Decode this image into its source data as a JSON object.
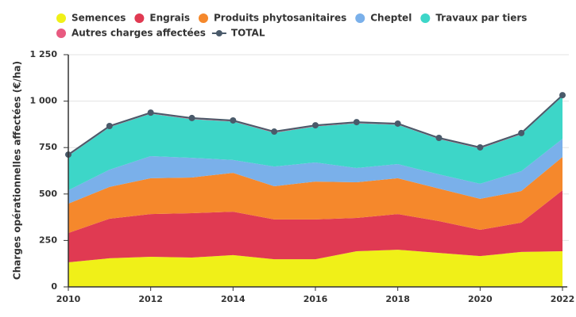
{
  "chart_data": {
    "type": "stacked-area",
    "y_label": "Charges opérationnelles affectées (€/ha)",
    "x": [
      2010,
      2011,
      2012,
      2013,
      2014,
      2015,
      2016,
      2017,
      2018,
      2019,
      2020,
      2021,
      2022
    ],
    "xlim": [
      2010,
      2022
    ],
    "xticks": [
      2010,
      2012,
      2014,
      2016,
      2018,
      2020,
      2022
    ],
    "ylim": [
      0,
      1250
    ],
    "yticks": [
      0,
      250,
      500,
      750,
      {
        "value": 1000,
        "label": "1 000"
      },
      {
        "value": 1250,
        "label": "1 250"
      }
    ],
    "grid": true,
    "series": [
      {
        "name": "Semences",
        "color": "#f0f018",
        "values": [
          132,
          154,
          162,
          158,
          171,
          149,
          149,
          192,
          200,
          183,
          166,
          188,
          192
        ]
      },
      {
        "name": "Engrais",
        "color": "#e03a52",
        "values": [
          158,
          213,
          230,
          239,
          234,
          214,
          214,
          179,
          192,
          171,
          141,
          158,
          328
        ]
      },
      {
        "name": "Produits phytosanitaires",
        "color": "#f5882c",
        "values": [
          158,
          171,
          193,
          192,
          209,
          179,
          204,
          192,
          193,
          175,
          167,
          170,
          179
        ]
      },
      {
        "name": "Cheptel",
        "color": "#7ab0ea",
        "values": [
          72,
          93,
          119,
          106,
          69,
          106,
          103,
          77,
          76,
          77,
          81,
          107,
          98
        ]
      },
      {
        "name": "Travaux par tiers",
        "color": "#3dd6c8",
        "values": [
          186,
          229,
          228,
          208,
          207,
          182,
          194,
          241,
          212,
          190,
          190,
          199,
          229
        ]
      },
      {
        "name": "Autres charges affectées",
        "color": "#e85a80",
        "values": [
          6,
          6,
          6,
          6,
          6,
          6,
          6,
          6,
          6,
          6,
          6,
          6,
          6
        ]
      },
      {
        "name": "TOTAL",
        "color": "#4a5a6a",
        "line": true,
        "values": [
          712,
          866,
          938,
          909,
          896,
          836,
          870,
          887,
          879,
          802,
          751,
          828,
          1032
        ]
      }
    ]
  }
}
